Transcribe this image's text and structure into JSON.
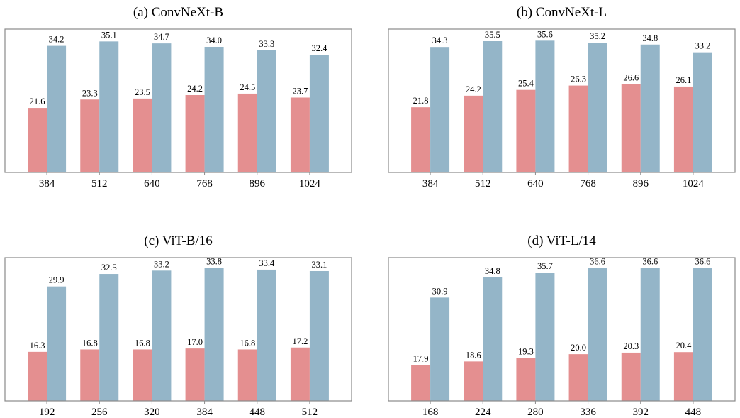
{
  "colors": {
    "series_a": "#e48f90",
    "series_b": "#94b5c8",
    "frame": "#8a8a8a"
  },
  "chart_data": [
    {
      "type": "bar",
      "title": "(a) ConvNeXt-B",
      "categories": [
        "384",
        "512",
        "640",
        "768",
        "896",
        "1024"
      ],
      "series": [
        {
          "values": [
            21.6,
            23.3,
            23.5,
            24.2,
            24.5,
            23.7
          ]
        },
        {
          "values": [
            34.2,
            35.1,
            34.7,
            34.0,
            33.3,
            32.4
          ]
        }
      ],
      "ylim": [
        8.5,
        37.6
      ],
      "grid": false,
      "legend": "none"
    },
    {
      "type": "bar",
      "title": "(b) ConvNeXt-L",
      "categories": [
        "384",
        "512",
        "640",
        "768",
        "896",
        "1024"
      ],
      "series": [
        {
          "values": [
            21.8,
            24.2,
            25.4,
            26.3,
            26.6,
            26.1
          ]
        },
        {
          "values": [
            34.3,
            35.5,
            35.6,
            35.2,
            34.8,
            33.2
          ]
        }
      ],
      "ylim": [
        8.3,
        38.0
      ],
      "grid": false,
      "legend": "none"
    },
    {
      "type": "bar",
      "title": "(c) ViT-B/16",
      "categories": [
        "192",
        "256",
        "320",
        "384",
        "448",
        "512"
      ],
      "series": [
        {
          "values": [
            16.3,
            16.8,
            16.8,
            17.0,
            16.8,
            17.2
          ]
        },
        {
          "values": [
            29.9,
            32.5,
            33.2,
            33.8,
            33.4,
            33.1
          ]
        }
      ],
      "ylim": [
        6.1,
        35.9
      ],
      "grid": false,
      "legend": "none"
    },
    {
      "type": "bar",
      "title": "(d) ViT-L/14",
      "categories": [
        "168",
        "224",
        "280",
        "336",
        "392",
        "448"
      ],
      "series": [
        {
          "values": [
            17.9,
            18.6,
            19.3,
            20.0,
            20.3,
            20.4
          ]
        },
        {
          "values": [
            30.9,
            34.8,
            35.7,
            36.6,
            36.6,
            36.6
          ]
        }
      ],
      "ylim": [
        11.0,
        38.6
      ],
      "grid": false,
      "legend": "none"
    }
  ]
}
